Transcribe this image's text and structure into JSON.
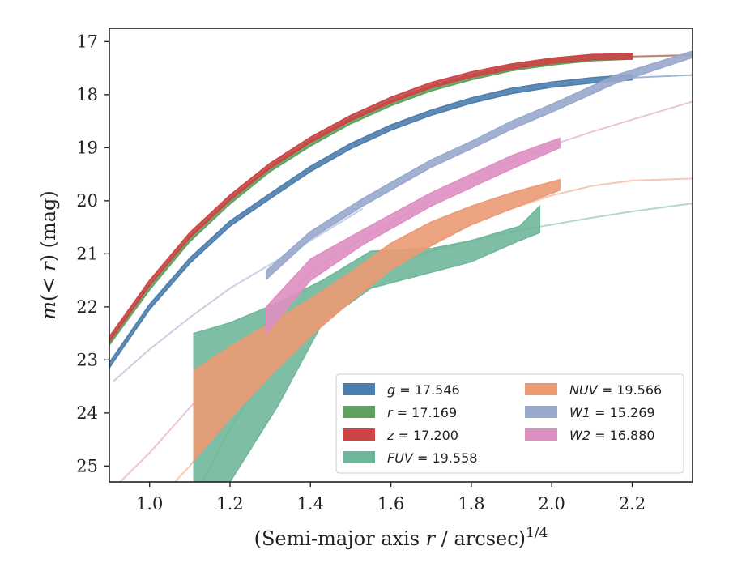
{
  "chart_data": {
    "type": "line",
    "xlabel_main": "(Semi-major axis ",
    "xlabel_var": "r",
    "xlabel_unit": " / arcsec)",
    "xlabel_exp": "1/4",
    "ylabel_main": "m",
    "ylabel_paren": "(< ",
    "ylabel_var": "r",
    "ylabel_tail": ") (mag)",
    "xlim": [
      0.9,
      2.35
    ],
    "ylim": [
      25.3,
      16.75
    ],
    "y_inverted": true,
    "x_ticks": [
      1.0,
      1.2,
      1.4,
      1.6,
      1.8,
      2.0,
      2.2
    ],
    "x_tick_labels": [
      "1.0",
      "1.2",
      "1.4",
      "1.6",
      "1.8",
      "2.0",
      "2.2"
    ],
    "y_ticks": [
      17,
      18,
      19,
      20,
      21,
      22,
      23,
      24,
      25
    ],
    "y_tick_labels": [
      "17",
      "18",
      "19",
      "20",
      "21",
      "22",
      "23",
      "24",
      "25"
    ],
    "grid": false,
    "legend_position": "lower-right",
    "series": [
      {
        "name": "g",
        "legend_value": "= 17.546",
        "color": "#4c7ead",
        "band": [
          [
            0.9,
            23.15,
            23.05
          ],
          [
            1.0,
            22.05,
            21.95
          ],
          [
            1.1,
            21.18,
            21.08
          ],
          [
            1.2,
            20.48,
            20.38
          ],
          [
            1.3,
            19.96,
            19.86
          ],
          [
            1.4,
            19.45,
            19.35
          ],
          [
            1.5,
            19.02,
            18.92
          ],
          [
            1.6,
            18.67,
            18.57
          ],
          [
            1.7,
            18.39,
            18.29
          ],
          [
            1.8,
            18.16,
            18.06
          ],
          [
            1.9,
            17.98,
            17.88
          ],
          [
            2.0,
            17.86,
            17.76
          ],
          [
            2.1,
            17.78,
            17.68
          ],
          [
            2.2,
            17.72,
            17.62
          ]
        ],
        "model": [
          [
            2.2,
            17.68
          ],
          [
            2.35,
            17.63
          ]
        ]
      },
      {
        "name": "r",
        "legend_value": "= 17.169",
        "color": "#5ea05e",
        "band": [
          [
            0.9,
            22.72,
            22.62
          ],
          [
            1.0,
            21.68,
            21.58
          ],
          [
            1.1,
            20.77,
            20.67
          ],
          [
            1.2,
            20.06,
            19.96
          ],
          [
            1.3,
            19.45,
            19.35
          ],
          [
            1.4,
            18.97,
            18.87
          ],
          [
            1.5,
            18.55,
            18.45
          ],
          [
            1.6,
            18.21,
            18.11
          ],
          [
            1.7,
            17.93,
            17.83
          ],
          [
            1.8,
            17.72,
            17.62
          ],
          [
            1.9,
            17.55,
            17.45
          ],
          [
            2.0,
            17.44,
            17.34
          ],
          [
            2.1,
            17.36,
            17.26
          ],
          [
            2.2,
            17.33,
            17.23
          ]
        ],
        "model": [
          [
            2.2,
            17.28
          ],
          [
            2.35,
            17.26
          ]
        ]
      },
      {
        "name": "z",
        "legend_value": "= 17.200",
        "color": "#cc4444",
        "band": [
          [
            0.9,
            22.66,
            22.56
          ],
          [
            1.0,
            21.6,
            21.5
          ],
          [
            1.1,
            20.7,
            20.6
          ],
          [
            1.2,
            19.99,
            19.89
          ],
          [
            1.3,
            19.39,
            19.29
          ],
          [
            1.4,
            18.9,
            18.8
          ],
          [
            1.5,
            18.49,
            18.39
          ],
          [
            1.6,
            18.15,
            18.05
          ],
          [
            1.7,
            17.87,
            17.77
          ],
          [
            1.8,
            17.67,
            17.57
          ],
          [
            1.9,
            17.52,
            17.42
          ],
          [
            2.0,
            17.41,
            17.31
          ],
          [
            2.1,
            17.34,
            17.24
          ],
          [
            2.2,
            17.33,
            17.23
          ]
        ],
        "model": [
          [
            2.2,
            17.28
          ],
          [
            2.35,
            17.25
          ]
        ]
      },
      {
        "name": "FUV",
        "legend_value": "= 19.558",
        "color": "#6fb79a",
        "band": [
          [
            1.11,
            25.5,
            22.5
          ],
          [
            1.2,
            25.3,
            22.3
          ],
          [
            1.32,
            23.85,
            21.92
          ],
          [
            1.43,
            22.3,
            21.5
          ],
          [
            1.55,
            21.65,
            20.95
          ],
          [
            1.7,
            21.35,
            20.9
          ],
          [
            1.8,
            21.15,
            20.75
          ],
          [
            1.92,
            20.75,
            20.48
          ],
          [
            1.97,
            20.6,
            20.1
          ]
        ],
        "model": [
          [
            1.11,
            25.6
          ],
          [
            1.2,
            24.3
          ],
          [
            1.3,
            23.1
          ],
          [
            1.4,
            22.25
          ],
          [
            1.5,
            21.65
          ],
          [
            1.6,
            21.2
          ],
          [
            1.7,
            20.95
          ],
          [
            1.8,
            20.75
          ],
          [
            1.9,
            20.58
          ],
          [
            2.0,
            20.45
          ],
          [
            2.1,
            20.32
          ],
          [
            2.2,
            20.2
          ],
          [
            2.35,
            20.05
          ]
        ]
      },
      {
        "name": "NUV",
        "legend_value": "= 19.566",
        "color": "#eb9a74",
        "band": [
          [
            1.11,
            24.9,
            23.2
          ],
          [
            1.2,
            24.1,
            22.75
          ],
          [
            1.3,
            23.3,
            22.3
          ],
          [
            1.4,
            22.55,
            21.85
          ],
          [
            1.5,
            21.9,
            21.35
          ],
          [
            1.6,
            21.3,
            20.8
          ],
          [
            1.7,
            20.85,
            20.4
          ],
          [
            1.8,
            20.45,
            20.1
          ],
          [
            1.9,
            20.15,
            19.85
          ],
          [
            2.02,
            19.8,
            19.6
          ]
        ],
        "model": [
          [
            0.9,
            26.5
          ],
          [
            1.0,
            25.8
          ],
          [
            1.1,
            25.0
          ],
          [
            1.2,
            24.0
          ],
          [
            1.3,
            23.2
          ],
          [
            1.4,
            22.45
          ],
          [
            1.5,
            21.85
          ],
          [
            1.6,
            21.25
          ],
          [
            1.7,
            20.8
          ],
          [
            1.8,
            20.45
          ],
          [
            1.9,
            20.15
          ],
          [
            2.0,
            19.9
          ],
          [
            2.1,
            19.72
          ],
          [
            2.2,
            19.62
          ],
          [
            2.35,
            19.58
          ]
        ]
      },
      {
        "name": "W1",
        "legend_value": "= 15.269",
        "color": "#98a9cc",
        "band": [
          [
            1.29,
            21.48,
            21.32
          ],
          [
            1.4,
            20.72,
            20.58
          ],
          [
            1.53,
            20.1,
            19.96
          ],
          [
            1.7,
            19.37,
            19.23
          ],
          [
            1.8,
            19.02,
            18.88
          ],
          [
            1.9,
            18.65,
            18.5
          ],
          [
            2.0,
            18.33,
            18.18
          ],
          [
            2.16,
            17.78,
            17.63
          ],
          [
            2.35,
            17.3,
            17.18
          ]
        ],
        "model": [
          [
            0.91,
            23.4
          ],
          [
            1.0,
            22.8
          ],
          [
            1.1,
            22.2
          ],
          [
            1.2,
            21.65
          ],
          [
            1.3,
            21.2
          ],
          [
            1.4,
            20.75
          ],
          [
            1.53,
            20.15
          ]
        ]
      },
      {
        "name": "W2",
        "legend_value": "= 16.880",
        "color": "#de8fc1",
        "band": [
          [
            1.29,
            22.5,
            22.0
          ],
          [
            1.4,
            21.5,
            21.1
          ],
          [
            1.53,
            20.83,
            20.55
          ],
          [
            1.7,
            20.1,
            19.85
          ],
          [
            1.8,
            19.75,
            19.5
          ],
          [
            1.9,
            19.4,
            19.15
          ],
          [
            2.02,
            19.0,
            18.82
          ]
        ],
        "model": [
          [
            0.9,
            25.5
          ],
          [
            1.0,
            24.75
          ],
          [
            1.1,
            23.9
          ],
          [
            1.2,
            23.05
          ],
          [
            1.29,
            22.3
          ],
          [
            1.4,
            21.35
          ],
          [
            1.53,
            20.7
          ],
          [
            1.7,
            20.0
          ],
          [
            1.8,
            19.62
          ],
          [
            1.9,
            19.27
          ],
          [
            2.0,
            18.95
          ],
          [
            2.1,
            18.7
          ],
          [
            2.2,
            18.47
          ],
          [
            2.35,
            18.13
          ]
        ]
      }
    ]
  }
}
